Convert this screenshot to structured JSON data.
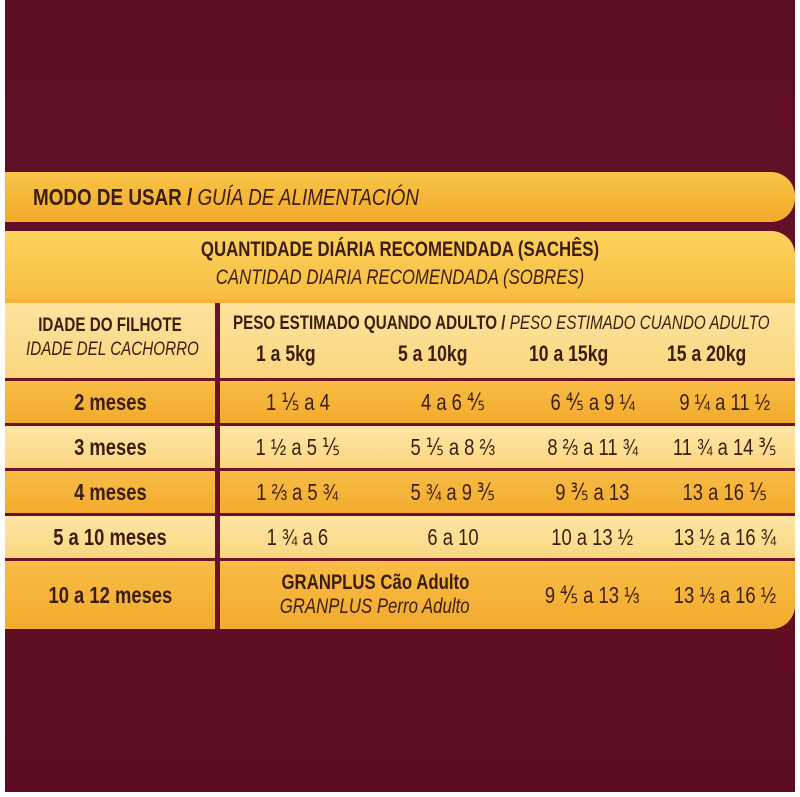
{
  "header": {
    "title_pt": "MODO DE USAR",
    "separator": " / ",
    "title_es": "GUÍA DE ALIMENTACIÓN"
  },
  "quantity": {
    "title_pt": "QUANTIDADE DIÁRIA RECOMENDADA (SACHÊS)",
    "title_es": "CANTIDAD DIARIA RECOMENDADA (SOBRES)"
  },
  "columns": {
    "age_pt": "IDADE DO FILHOTE",
    "age_es": "IDADE DEL CACHORRO",
    "weight_pt": "PESO ESTIMADO QUANDO ADULTO",
    "weight_sep": " / ",
    "weight_es": "PESO ESTIMADO CUANDO ADULTO",
    "weights": [
      "1 a 5kg",
      "5 a 10kg",
      "10 a 15kg",
      "15 a 20kg"
    ]
  },
  "rows": [
    {
      "age": "2 meses",
      "values": [
        "1 ⅕ a 4",
        "4 a 6 ⅘",
        "6 ⅘ a 9 ¼",
        "9 ¼ a 11 ½"
      ]
    },
    {
      "age": "3 meses",
      "values": [
        "1 ½ a 5 ⅕",
        "5 ⅕ a 8 ⅔",
        "8 ⅔ a 11 ¾",
        "11 ¾ a 14 ⅗"
      ]
    },
    {
      "age": "4 meses",
      "values": [
        "1 ⅔ a 5 ¾",
        "5 ¾ a 9 ⅗",
        "9 ⅗ a 13",
        "13 a 16 ⅕"
      ]
    },
    {
      "age": "5 a 10 meses",
      "values": [
        "1 ¾ a 6",
        "6 a 10",
        "10 a 13 ½",
        "13 ½ a 16 ¾"
      ]
    },
    {
      "age": "10 a 12 meses",
      "adult_pt": "GRANPLUS Cão Adulto",
      "adult_es": "GRANPLUS Perro Adulto",
      "values": [
        "9 ⅘ a 13 ⅓",
        "13 ⅓ a 16 ½"
      ]
    }
  ],
  "colors": {
    "background": "#5e0f24",
    "orange": "#f4b33a",
    "light": "#fde6a6",
    "text": "#3b1d12"
  }
}
